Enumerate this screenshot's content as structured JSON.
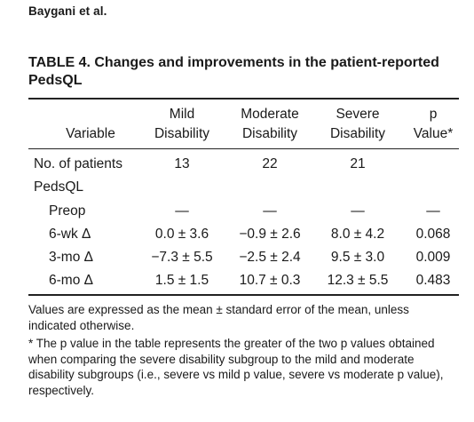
{
  "running_head": "Baygani et al.",
  "table_title": "TABLE 4. Changes and improvements in the patient-reported PedsQL",
  "columns": [
    {
      "line1": "",
      "line2": "Variable"
    },
    {
      "line1": "Mild",
      "line2": "Disability"
    },
    {
      "line1": "Moderate",
      "line2": "Disability"
    },
    {
      "line1": "Severe",
      "line2": "Disability"
    },
    {
      "line1": "p",
      "line2": "Value*"
    }
  ],
  "rows": [
    {
      "label": "No. of patients",
      "mild": "13",
      "moderate": "22",
      "severe": "21",
      "p": ""
    },
    {
      "label": "PedsQL",
      "mild": "",
      "moderate": "",
      "severe": "",
      "p": ""
    },
    {
      "label": "Preop",
      "mild": "—",
      "moderate": "—",
      "severe": "—",
      "p": "—"
    },
    {
      "label": "6-wk Δ",
      "mild": "0.0 ± 3.6",
      "moderate": "−0.9 ± 2.6",
      "severe": "8.0 ± 4.2",
      "p": "0.068"
    },
    {
      "label": "3-mo Δ",
      "mild": "−7.3 ± 5.5",
      "moderate": "−2.5 ± 2.4",
      "severe": "9.5 ± 3.0",
      "p": "0.009"
    },
    {
      "label": "6-mo Δ",
      "mild": "1.5 ± 1.5",
      "moderate": "10.7 ± 0.3",
      "severe": "12.3 ± 5.5",
      "p": "0.483"
    }
  ],
  "footnotes": [
    "Values are expressed as the mean ± standard error of the mean, unless indicated otherwise.",
    "* The p value in the table represents the greater of the two p values obtained when comparing the severe disability subgroup to the mild and moderate disability subgroups (i.e., severe vs mild p value, severe vs moderate p value), respectively."
  ]
}
